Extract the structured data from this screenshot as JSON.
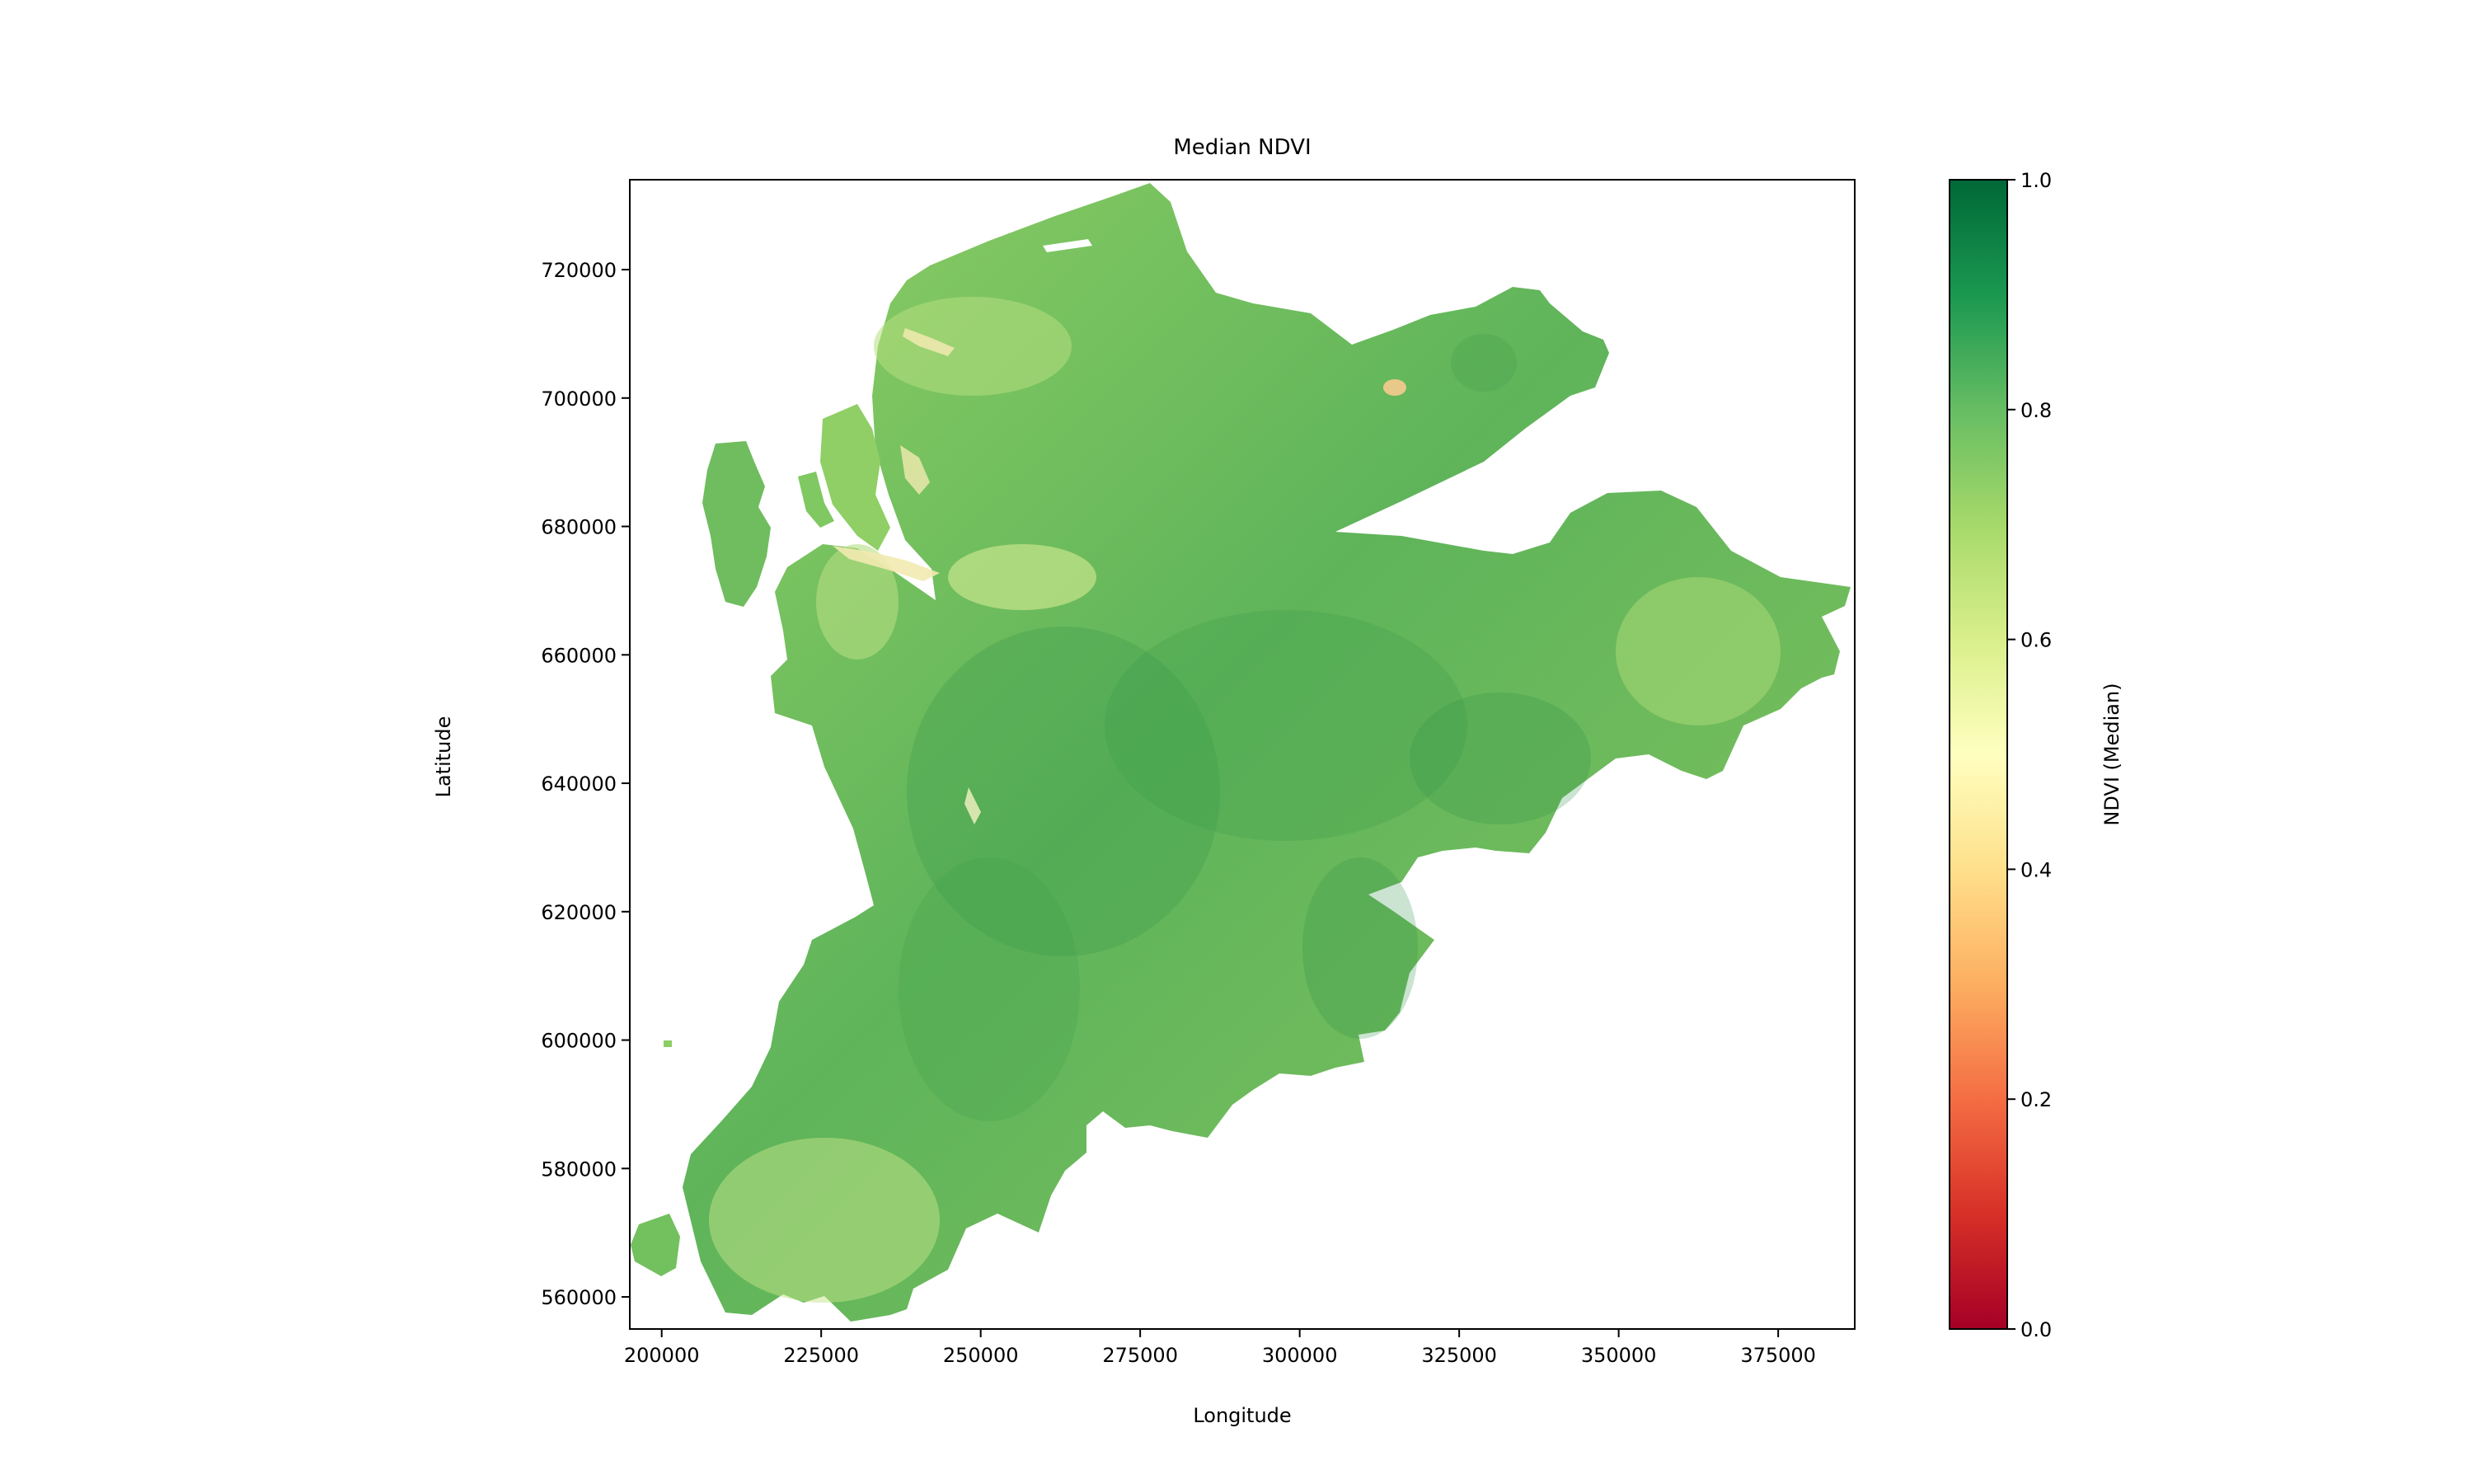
{
  "chart_data": {
    "type": "heatmap",
    "title": "Median NDVI",
    "xlabel": "Longitude",
    "ylabel": "Latitude",
    "xlim": [
      195000,
      387000
    ],
    "ylim": [
      555000,
      734000
    ],
    "xticks": [
      200000,
      225000,
      250000,
      275000,
      300000,
      325000,
      350000,
      375000
    ],
    "xtick_labels": [
      "200000",
      "225000",
      "250000",
      "275000",
      "300000",
      "325000",
      "350000",
      "375000"
    ],
    "yticks": [
      560000,
      580000,
      600000,
      620000,
      640000,
      660000,
      680000,
      700000,
      720000
    ],
    "ytick_labels": [
      "560000",
      "580000",
      "600000",
      "620000",
      "640000",
      "660000",
      "680000",
      "700000",
      "720000"
    ],
    "grid": false,
    "colormap": "RdYlGn",
    "colormap_stops": [
      "#a50026",
      "#d73027",
      "#f46d43",
      "#fdae61",
      "#fee08b",
      "#ffffbf",
      "#d9ef8b",
      "#a6d96a",
      "#66bd63",
      "#1a9850",
      "#006837"
    ],
    "colorbar": {
      "label": "NDVI (Median)",
      "range": [
        0.0,
        1.0
      ],
      "ticks": [
        0.0,
        0.2,
        0.4,
        0.6,
        0.8,
        1.0
      ],
      "tick_labels": [
        "0.0",
        "0.2",
        "0.4",
        "0.6",
        "0.8",
        "1.0"
      ],
      "placement": "right"
    },
    "typical_value": 0.75
  }
}
